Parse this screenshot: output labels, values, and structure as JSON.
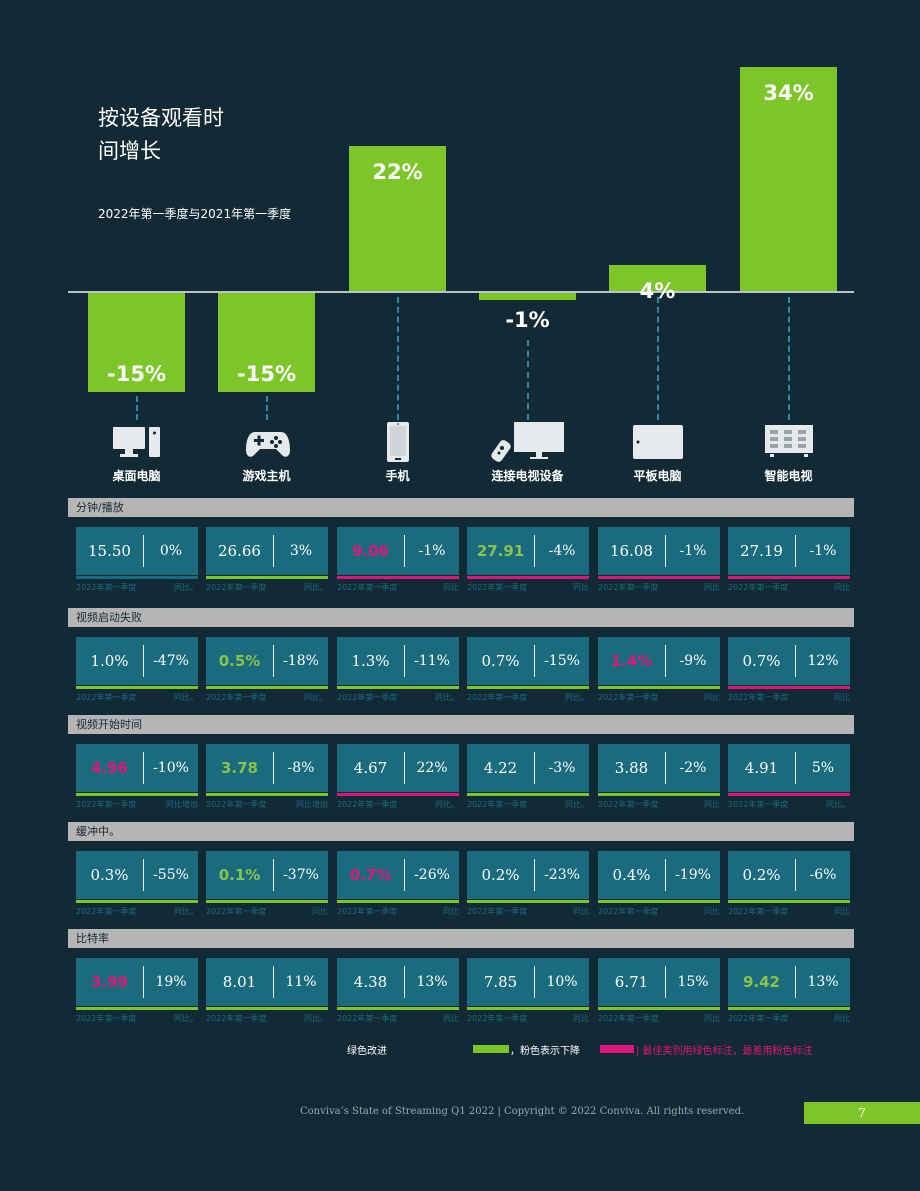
{
  "title_line1": "按设备观看时",
  "title_line2": "间增长",
  "subtitle": "2022年第一季度与2021年第一季度",
  "chart_data": {
    "type": "bar",
    "title": "按设备观看时间增长",
    "subtitle": "2022年第一季度与2021年第一季度",
    "categories": [
      "桌面电脑",
      "游戏主机",
      "手机",
      "连接电视设备",
      "平板电脑",
      "智能电视"
    ],
    "values": [
      -15,
      -15,
      22,
      -1,
      4,
      34
    ],
    "value_labels": [
      "-15%",
      "-15%",
      "22%",
      "-1%",
      "4%",
      "34%"
    ],
    "unit": "%",
    "ylim": [
      -15,
      34
    ]
  },
  "devices": [
    {
      "name": "桌面电脑",
      "icon": "desktop-icon"
    },
    {
      "name": "游戏主机",
      "icon": "gamepad-icon"
    },
    {
      "name": "手机",
      "icon": "phone-icon"
    },
    {
      "name": "连接电视设备",
      "icon": "connected-tv-icon"
    },
    {
      "name": "平板电脑",
      "icon": "tablet-icon"
    },
    {
      "name": "智能电视",
      "icon": "smart-tv-icon"
    }
  ],
  "colors": {
    "best": "#8bc34a",
    "worst": "#e0157a",
    "teal": "#1b6b7f",
    "green": "#7dc62a"
  },
  "sections": [
    {
      "label": "分钟/播放",
      "cards": [
        {
          "v1": "15.50",
          "v2": "0%",
          "status": "neutral",
          "under": "#1b6b7f",
          "foot_l": "2022年第一季度",
          "foot_r": "同比。"
        },
        {
          "v1": "26.66",
          "v2": "3%",
          "status": "neutral",
          "under": "#7dc62a",
          "foot_l": "2022年第一季度",
          "foot_r": "同比。"
        },
        {
          "v1": "9.06",
          "v2": "-1%",
          "status": "worst",
          "under": "#e0157a",
          "foot_l": "2022年第一季度",
          "foot_r": "同比"
        },
        {
          "v1": "27.91",
          "v2": "-4%",
          "status": "best",
          "under": "#e0157a",
          "foot_l": "2022年第一季度",
          "foot_r": "同比"
        },
        {
          "v1": "16.08",
          "v2": "-1%",
          "status": "neutral",
          "under": "#e0157a",
          "foot_l": "2022年第一季度",
          "foot_r": "同比"
        },
        {
          "v1": "27.19",
          "v2": "-1%",
          "status": "neutral",
          "under": "#e0157a",
          "foot_l": "2022年第一季度",
          "foot_r": "同比"
        }
      ]
    },
    {
      "label": "视频启动失败",
      "cards": [
        {
          "v1": "1.0%",
          "v2": "-47%",
          "status": "neutral",
          "under": "#7dc62a",
          "foot_l": "2022年第一季度",
          "foot_r": "同比。"
        },
        {
          "v1": "0.5%",
          "v2": "-18%",
          "status": "best",
          "under": "#7dc62a",
          "foot_l": "2022年第一季度",
          "foot_r": "同比。"
        },
        {
          "v1": "1.3%",
          "v2": "-11%",
          "status": "neutral",
          "under": "#7dc62a",
          "foot_l": "2022年第一季度",
          "foot_r": "同比。"
        },
        {
          "v1": "0.7%",
          "v2": "-15%",
          "status": "neutral",
          "under": "#7dc62a",
          "foot_l": "2022年第一季度",
          "foot_r": "同比。"
        },
        {
          "v1": "1.4%",
          "v2": "-9%",
          "status": "worst",
          "under": "#7dc62a",
          "foot_l": "2022年第一季度",
          "foot_r": "同比"
        },
        {
          "v1": "0.7%",
          "v2": "12%",
          "status": "neutral",
          "under": "#e0157a",
          "foot_l": "2022年第一季度",
          "foot_r": "同比"
        }
      ]
    },
    {
      "label": "视频开始时间",
      "cards": [
        {
          "v1": "4.96",
          "v2": "-10%",
          "status": "worst",
          "under": "#7dc62a",
          "foot_l": "2022年第一季度",
          "foot_r": "同比增加"
        },
        {
          "v1": "3.78",
          "v2": "-8%",
          "status": "best",
          "under": "#7dc62a",
          "foot_l": "2022年第一季度",
          "foot_r": "同比增加"
        },
        {
          "v1": "4.67",
          "v2": "22%",
          "status": "neutral",
          "under": "#e0157a",
          "foot_l": "2022年第一季度",
          "foot_r": "同比。"
        },
        {
          "v1": "4.22",
          "v2": "-3%",
          "status": "neutral",
          "under": "#7dc62a",
          "foot_l": "2022年第一季度",
          "foot_r": "同比。"
        },
        {
          "v1": "3.88",
          "v2": "-2%",
          "status": "neutral",
          "under": "#7dc62a",
          "foot_l": "2022年第一季度",
          "foot_r": "同比"
        },
        {
          "v1": "4.91",
          "v2": "5%",
          "status": "neutral",
          "under": "#e0157a",
          "foot_l": "2022年第一季度",
          "foot_r": "同比。"
        }
      ]
    },
    {
      "label": "缓冲中。",
      "cards": [
        {
          "v1": "0.3%",
          "v2": "-55%",
          "status": "neutral",
          "under": "#7dc62a",
          "foot_l": "2022年第一季度",
          "foot_r": "同比。"
        },
        {
          "v1": "0.1%",
          "v2": "-37%",
          "status": "best",
          "under": "#7dc62a",
          "foot_l": "2022年第一季度",
          "foot_r": "同比"
        },
        {
          "v1": "0.7%",
          "v2": "-26%",
          "status": "worst",
          "under": "#7dc62a",
          "foot_l": "2022年第一季度",
          "foot_r": "同比"
        },
        {
          "v1": "0.2%",
          "v2": "-23%",
          "status": "neutral",
          "under": "#7dc62a",
          "foot_l": "2022年第一季度",
          "foot_r": "同比"
        },
        {
          "v1": "0.4%",
          "v2": "-19%",
          "status": "neutral",
          "under": "#7dc62a",
          "foot_l": "2022年第一季度",
          "foot_r": "同比"
        },
        {
          "v1": "0.2%",
          "v2": "-6%",
          "status": "neutral",
          "under": "#7dc62a",
          "foot_l": "2022年第一季度",
          "foot_r": "同比"
        }
      ]
    },
    {
      "label": "比特率",
      "cards": [
        {
          "v1": "3.99",
          "v2": "19%",
          "status": "worst",
          "under": "#7dc62a",
          "foot_l": "2022年第一季度",
          "foot_r": "同比。"
        },
        {
          "v1": "8.01",
          "v2": "11%",
          "status": "neutral",
          "under": "#7dc62a",
          "foot_l": "2022年第一季度",
          "foot_r": "同比。"
        },
        {
          "v1": "4.38",
          "v2": "13%",
          "status": "neutral",
          "under": "#7dc62a",
          "foot_l": "2022年第一季度",
          "foot_r": "同比"
        },
        {
          "v1": "7.85",
          "v2": "10%",
          "status": "neutral",
          "under": "#7dc62a",
          "foot_l": "2022年第一季度",
          "foot_r": "同比"
        },
        {
          "v1": "6.71",
          "v2": "15%",
          "status": "neutral",
          "under": "#7dc62a",
          "foot_l": "2022年第一季度",
          "foot_r": "同比"
        },
        {
          "v1": "9.42",
          "v2": "13%",
          "status": "best",
          "under": "#7dc62a",
          "foot_l": "2022年第一季度",
          "foot_r": "同比"
        }
      ]
    }
  ],
  "legend": {
    "green_improve": "绿色改进",
    "pink_decline": "，粉色表示下降",
    "best_worst": "| 最佳类别用绿色标注，最差用粉色标注"
  },
  "footer": {
    "copyright": "Conviva’s State of Streaming Q1 2022 | Copyright © 2022 Conviva. All rights reserved.",
    "page": "7"
  }
}
